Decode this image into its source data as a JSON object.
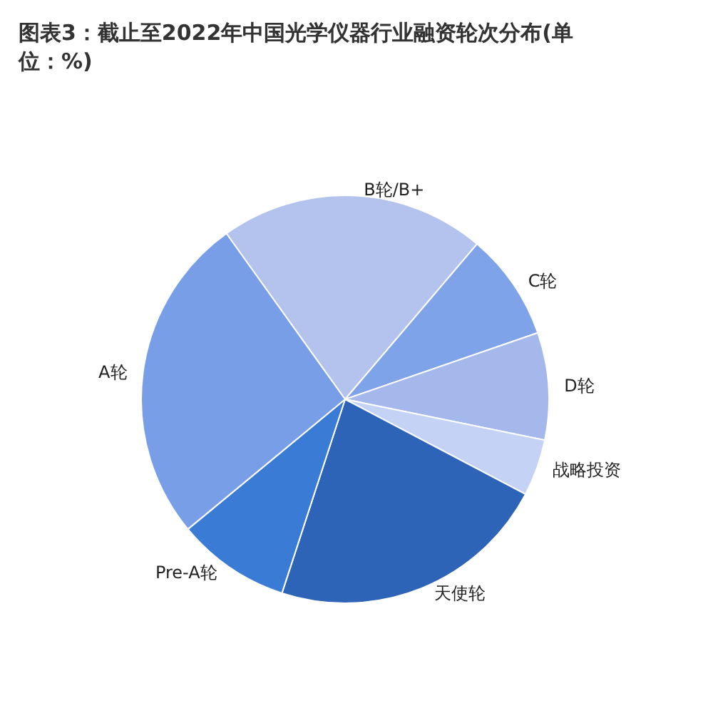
{
  "chart_data": {
    "type": "pie",
    "title": "图表3：截止至2022年中国光学仪器行业融资轮次分布(单位：%)",
    "categories": [
      "B轮/B+",
      "C轮",
      "D轮",
      "战略投资",
      "天使轮",
      "Pre-A轮",
      "A轮"
    ],
    "values": [
      21.1,
      8.5,
      8.5,
      4.5,
      22.3,
      9.0,
      26.1
    ],
    "colors": [
      "#b3c3ee",
      "#7fa3e8",
      "#a4b8eb",
      "#c4d3f5",
      "#2e64b8",
      "#3a7bd5",
      "#779ee6"
    ],
    "legend": false
  }
}
